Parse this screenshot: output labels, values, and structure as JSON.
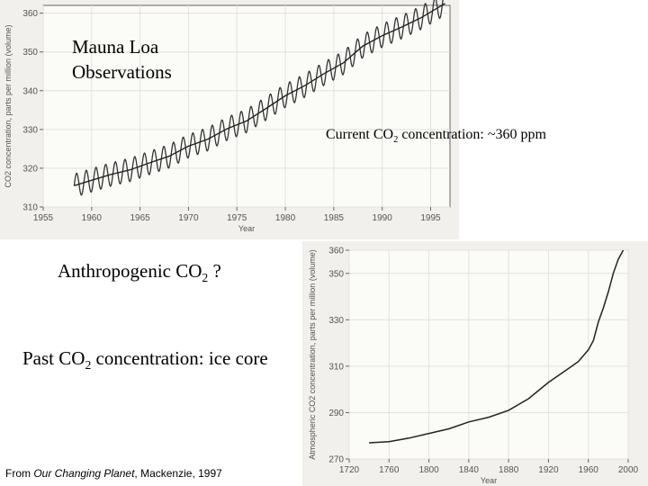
{
  "labels": {
    "mauna_line1": "Mauna Loa",
    "mauna_line2": "Observations",
    "current_prefix": "Current CO",
    "current_sub": "2",
    "current_suffix": " concentration: ~360 ppm",
    "anthro_prefix": "Anthropogenic CO",
    "anthro_sub": "2",
    "anthro_suffix": " ?",
    "past_prefix": "Past CO",
    "past_sub": "2",
    "past_suffix": " concentration: ice core",
    "source_prefix": "From ",
    "source_title": "Our Changing Planet",
    "source_suffix": ", Mackenzie, 1997"
  },
  "chart_data": [
    {
      "type": "line",
      "xlabel": "Year",
      "ylabel": "CO2 concentration, parts per million (volume)",
      "xlim": [
        1955,
        1997
      ],
      "ylim": [
        310,
        362
      ],
      "xticks": [
        1955,
        1960,
        1965,
        1970,
        1975,
        1980,
        1985,
        1990,
        1995
      ],
      "yticks": [
        310,
        320,
        330,
        340,
        350,
        360
      ],
      "grid": true,
      "series": [
        {
          "kind": "monthly with seasonal cycle",
          "x": [
            1958.2,
            1960,
            1962,
            1964,
            1966,
            1968,
            1970,
            1972,
            1974,
            1976,
            1978,
            1980,
            1982,
            1984,
            1986,
            1988,
            1990,
            1992,
            1994,
            1996.5
          ],
          "values": [
            315.5,
            316.9,
            318.4,
            319.6,
            321.4,
            323.1,
            325.7,
            327.5,
            330.2,
            332.2,
            335.4,
            338.7,
            341.3,
            344.4,
            347.2,
            351.5,
            354.2,
            356.4,
            358.8,
            362.5
          ],
          "seasonal_amplitude": 3
        },
        {
          "kind": "annual mean",
          "x": [
            1958.2,
            1960,
            1962,
            1964,
            1966,
            1968,
            1970,
            1972,
            1974,
            1976,
            1978,
            1980,
            1982,
            1984,
            1986,
            1988,
            1990,
            1992,
            1994,
            1996.5
          ],
          "values": [
            315.5,
            316.9,
            318.4,
            319.6,
            321.4,
            323.1,
            325.7,
            327.5,
            330.2,
            332.2,
            335.4,
            338.7,
            341.3,
            344.4,
            347.2,
            351.5,
            354.2,
            356.4,
            358.8,
            362.5
          ]
        }
      ]
    },
    {
      "type": "line",
      "xlabel": "Year",
      "ylabel": "Atmospheric CO2 concentration, parts per million (volume)",
      "xlim": [
        1720,
        2000
      ],
      "ylim": [
        270,
        360
      ],
      "xticks": [
        1720,
        1760,
        1800,
        1840,
        1880,
        1920,
        1960,
        2000
      ],
      "yticks": [
        270,
        290,
        310,
        330,
        350,
        360
      ],
      "grid": true,
      "series": [
        {
          "x": [
            1740,
            1760,
            1780,
            1800,
            1820,
            1840,
            1860,
            1880,
            1900,
            1920,
            1940,
            1950,
            1960,
            1965,
            1970,
            1975,
            1980,
            1985,
            1990,
            1995
          ],
          "values": [
            277,
            277.5,
            279,
            281,
            283,
            286,
            288,
            291,
            296,
            303,
            309,
            312,
            317,
            321,
            329,
            335,
            342,
            350,
            356,
            360
          ]
        }
      ]
    }
  ]
}
